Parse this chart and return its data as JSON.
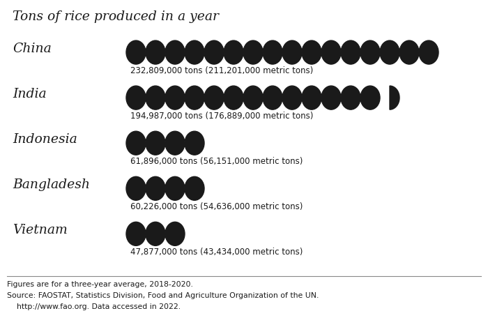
{
  "title": "Tons of rice produced in a year",
  "background_color": "#f2b8c0",
  "white_background": "#ffffff",
  "text_color": "#1a1a1a",
  "circle_color": "#1a1a1a",
  "countries": [
    "China",
    "India",
    "Indonesia",
    "Bangladesh",
    "Vietnam"
  ],
  "labels": [
    "232,809,000 tons (211,201,000 metric tons)",
    "194,987,000 tons (176,889,000 metric tons)",
    "61,896,000 tons (56,151,000 metric tons)",
    "60,226,000 tons (54,636,000 metric tons)",
    "47,877,000 tons (43,434,000 metric tons)"
  ],
  "full_circles": [
    16,
    13,
    4,
    4,
    3
  ],
  "partial_fractions": [
    0.0,
    0.5,
    0.0,
    0.0,
    0.0
  ],
  "footnote_line1": "Figures are for a three-year average, 2018-2020.",
  "footnote_line2": "Source: FAOSTAT, Statistics Division, Food and Agriculture Organization of the UN.",
  "footnote_line3": "    http://www.fao.org. Data accessed in 2022."
}
